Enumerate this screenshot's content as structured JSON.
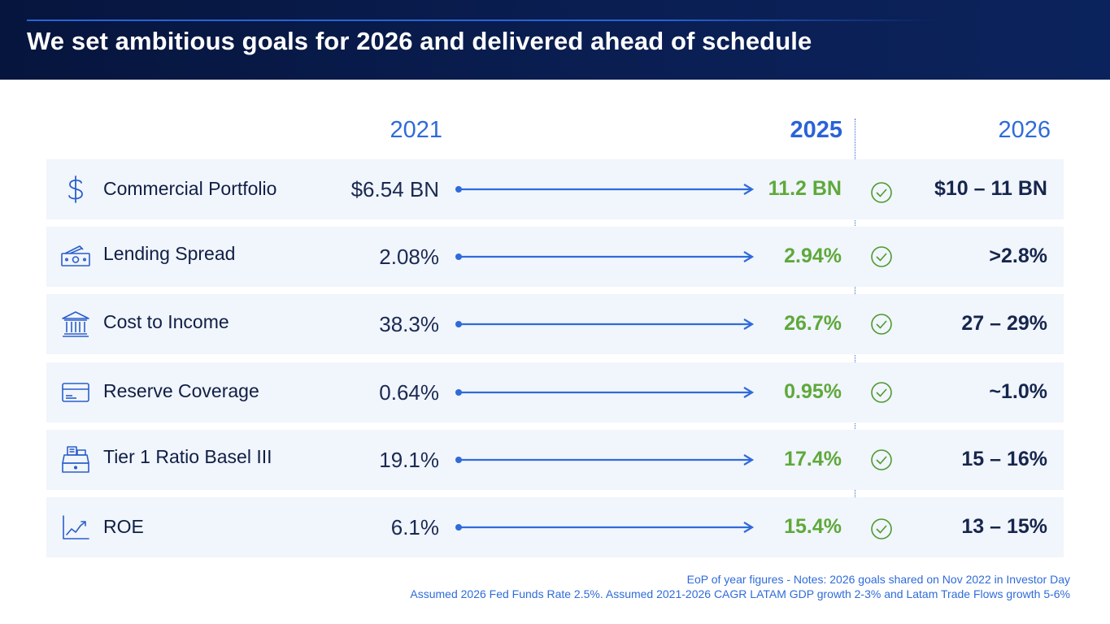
{
  "title": "We set ambitious goals for 2026 and delivered ahead of schedule",
  "columns": {
    "c2021": "2021",
    "c2025": "2025",
    "c2026": "2026"
  },
  "colors": {
    "accent": "#2f6bd9",
    "achieved": "#5ea93a",
    "header_bg": "#0a1e52",
    "row_bg": "#f1f5fc"
  },
  "rows": [
    {
      "icon": "dollar-icon",
      "label": "Commercial Portfolio",
      "v2021": "$6.54 BN",
      "v2025": "11.2 BN",
      "v2026": "$10 – 11 BN"
    },
    {
      "icon": "cash-icon",
      "label": "Lending Spread",
      "v2021": "2.08%",
      "v2025": "2.94%",
      "v2026": ">2.8%"
    },
    {
      "icon": "bank-icon",
      "label": "Cost to Income",
      "v2021": "38.3%",
      "v2025": "26.7%",
      "v2026": "27 – 29%"
    },
    {
      "icon": "card-icon",
      "label": "Reserve Coverage",
      "v2021": "0.64%",
      "v2025": "0.95%",
      "v2026": "~1.0%"
    },
    {
      "icon": "register-icon",
      "label": "Tier 1 Ratio Basel III",
      "v2021": "19.1%",
      "v2025": "17.4%",
      "v2026": "15 – 16%"
    },
    {
      "icon": "trend-up-icon",
      "label": "ROE",
      "v2021": "6.1%",
      "v2025": "15.4%",
      "v2026": "13 – 15%"
    }
  ],
  "footnotes": {
    "line1": "EoP of year figures - Notes: 2026 goals shared on Nov 2022 in Investor Day",
    "line2": "Assumed 2026 Fed Funds Rate 2.5%. Assumed 2021-2026 CAGR LATAM GDP growth 2-3% and Latam Trade Flows growth 5-6%"
  }
}
